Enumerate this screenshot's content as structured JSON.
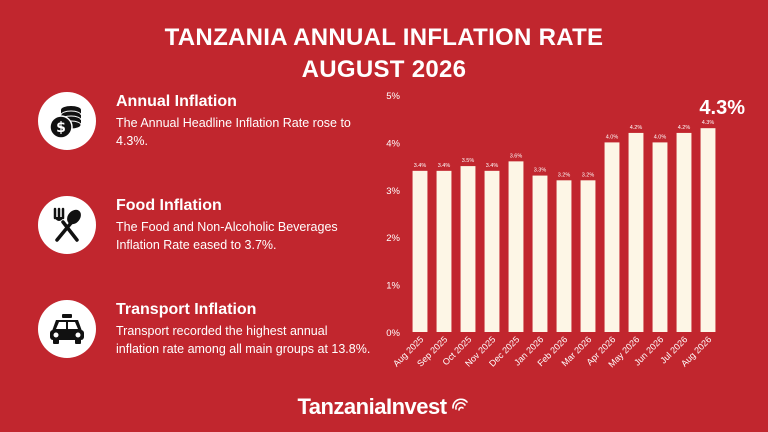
{
  "header": {
    "title_line1": "TANZANIA ANNUAL INFLATION RATE",
    "title_line2": "AUGUST 2026"
  },
  "sections": [
    {
      "icon": "coins-icon",
      "heading": "Annual Inflation",
      "text": "The Annual Headline Inflation Rate rose to 4.3%."
    },
    {
      "icon": "fork-spoon-icon",
      "heading": "Food Inflation",
      "text": "The Food and Non-Alcoholic Beverages Inflation Rate eased to 3.7%."
    },
    {
      "icon": "taxi-icon",
      "heading": "Transport Inflation",
      "text": "Transport recorded the highest annual inflation rate among all main groups at 13.8%."
    }
  ],
  "brand": {
    "name": "TanzaniaInvest"
  },
  "colors": {
    "background": "#c1262e",
    "bars": "#fdf6e6",
    "text": "#ffffff"
  },
  "chart_data": {
    "type": "bar",
    "categories": [
      "Aug 2025",
      "Sep 2025",
      "Oct 2025",
      "Nov 2025",
      "Dec 2025",
      "Jan 2026",
      "Feb 2026",
      "Mar 2026",
      "Apr 2026",
      "May 2026",
      "Jun 2026",
      "Jul 2026",
      "Aug 2026"
    ],
    "values": [
      3.4,
      3.4,
      3.5,
      3.4,
      3.6,
      3.3,
      3.2,
      3.2,
      4.0,
      4.2,
      4.0,
      4.2,
      4.3
    ],
    "data_labels": [
      "3.4%",
      "3.4%",
      "3.5%",
      "3.4%",
      "3.6%",
      "3.3%",
      "3.2%",
      "3.2%",
      "4.0%",
      "4.2%",
      "4.0%",
      "4.2%",
      "4.3%"
    ],
    "yticks": [
      0,
      1,
      2,
      3,
      4,
      5
    ],
    "ytick_labels": [
      "0%",
      "1%",
      "2%",
      "3%",
      "4%",
      "5%"
    ],
    "ylim": [
      0,
      5
    ],
    "highlight_label": "4.3%",
    "grid": false,
    "xlabel": "",
    "ylabel": ""
  }
}
